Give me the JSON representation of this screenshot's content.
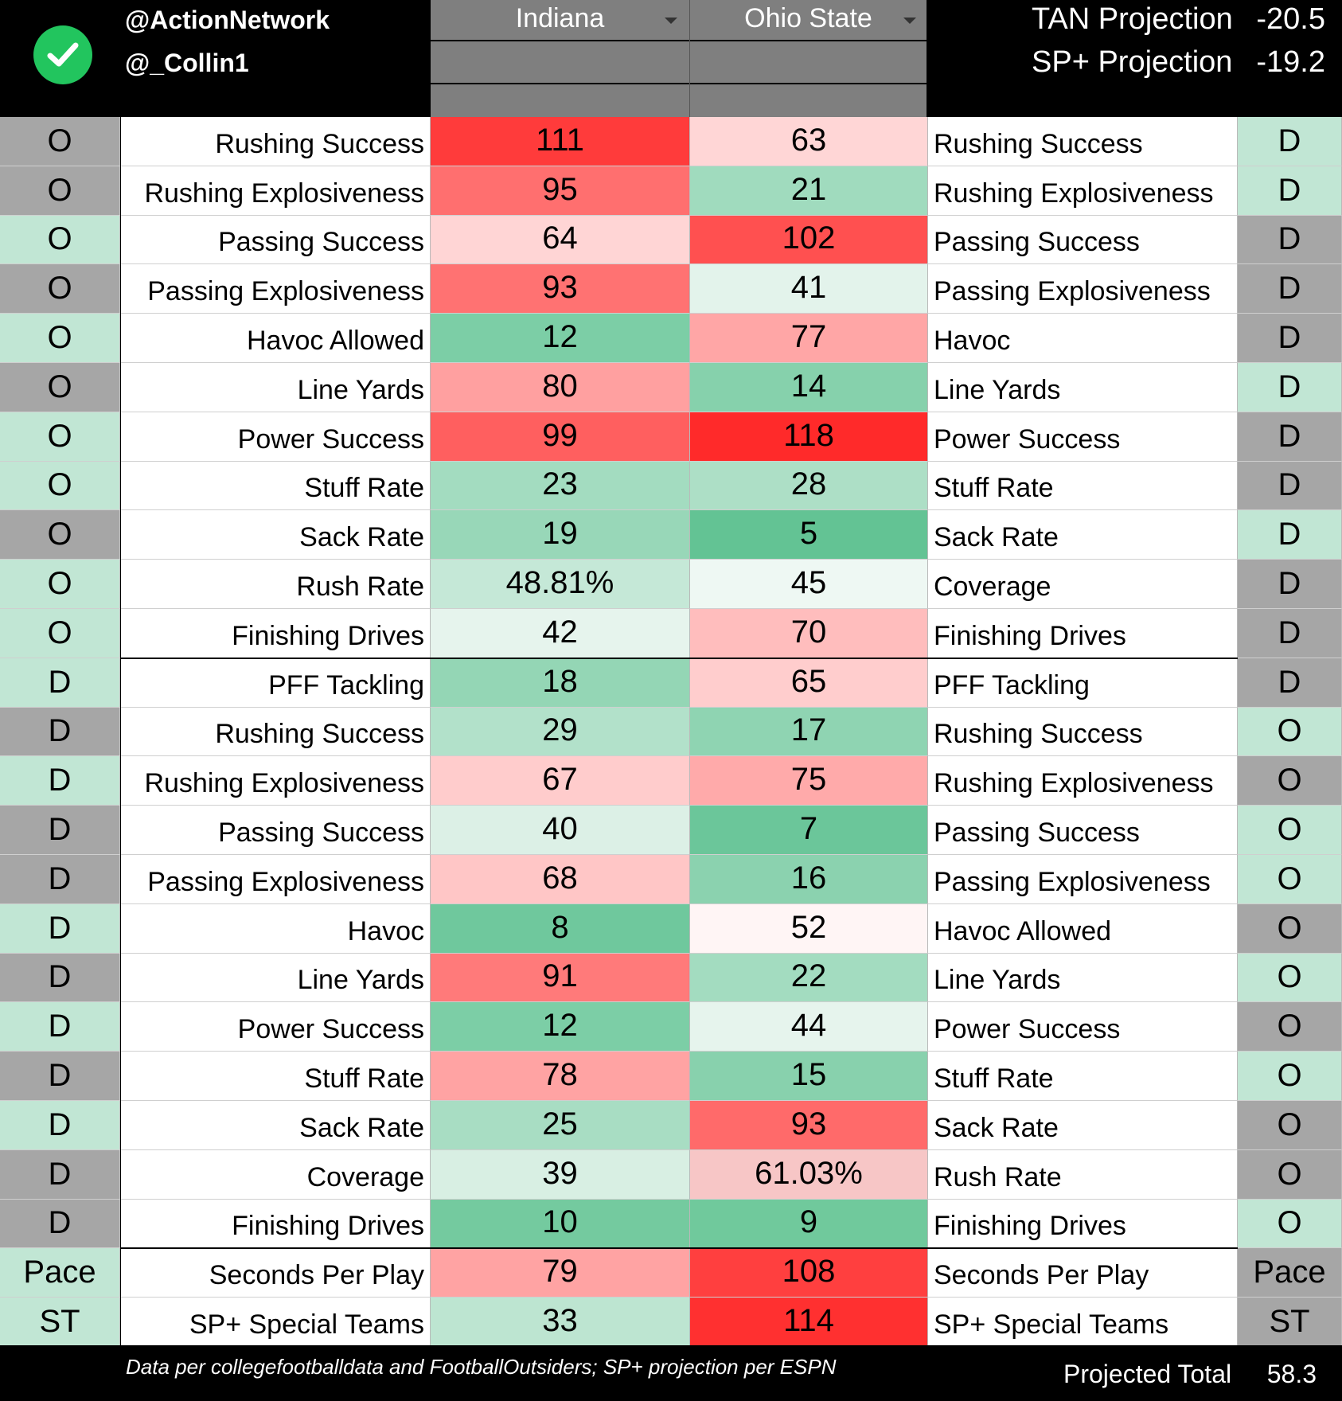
{
  "header": {
    "handle1": "@ActionNetwork",
    "handle2": "@_Collin1",
    "team_left": "Indiana",
    "team_right": "Ohio State",
    "projections": [
      {
        "label": "TAN Projection",
        "value": "-20.5"
      },
      {
        "label": "SP+ Projection",
        "value": "-19.2"
      }
    ]
  },
  "colors": {
    "side_gray": "#a6a6a6",
    "side_green": "#c1e6d4",
    "check_green": "#22c55e"
  },
  "rows": [
    {
      "left_side": "O",
      "left_label": "Rushing Success",
      "left_value": "111",
      "right_value": "63",
      "right_label": "Rushing Success",
      "right_side": "D",
      "ls_color": "#a6a6a6",
      "lv_color": "#ff3b3b",
      "rv_color": "#ffd6d6",
      "rs_color": "#c1e6d4"
    },
    {
      "left_side": "O",
      "left_label": "Rushing Explosiveness",
      "left_value": "95",
      "right_value": "21",
      "right_label": "Rushing Explosiveness",
      "right_side": "D",
      "ls_color": "#a6a6a6",
      "lv_color": "#ff6f6f",
      "rv_color": "#a0dbbe",
      "rs_color": "#c1e6d4"
    },
    {
      "left_side": "O",
      "left_label": "Passing Success",
      "left_value": "64",
      "right_value": "102",
      "right_label": "Passing Success",
      "right_side": "D",
      "ls_color": "#c1e6d4",
      "lv_color": "#ffd5d5",
      "rv_color": "#ff5050",
      "rs_color": "#a6a6a6"
    },
    {
      "left_side": "O",
      "left_label": "Passing Explosiveness",
      "left_value": "93",
      "right_value": "41",
      "right_label": "Passing Explosiveness",
      "right_side": "D",
      "ls_color": "#a6a6a6",
      "lv_color": "#ff7272",
      "rv_color": "#e3f3eb",
      "rs_color": "#a6a6a6"
    },
    {
      "left_side": "O",
      "left_label": "Havoc Allowed",
      "left_value": "12",
      "right_value": "77",
      "right_label": "Havoc",
      "right_side": "D",
      "ls_color": "#c1e6d4",
      "lv_color": "#7ccea6",
      "rv_color": "#ffa6a6",
      "rs_color": "#a6a6a6"
    },
    {
      "left_side": "O",
      "left_label": "Line Yards",
      "left_value": "80",
      "right_value": "14",
      "right_label": "Line Yards",
      "right_side": "D",
      "ls_color": "#a6a6a6",
      "lv_color": "#ffa0a0",
      "rv_color": "#86d1ac",
      "rs_color": "#c1e6d4"
    },
    {
      "left_side": "O",
      "left_label": "Power Success",
      "left_value": "99",
      "right_value": "118",
      "right_label": "Power Success",
      "right_side": "D",
      "ls_color": "#c1e6d4",
      "lv_color": "#ff5f5f",
      "rv_color": "#ff2a2a",
      "rs_color": "#a6a6a6"
    },
    {
      "left_side": "O",
      "left_label": "Stuff Rate",
      "left_value": "23",
      "right_value": "28",
      "right_label": "Stuff Rate",
      "right_side": "D",
      "ls_color": "#c1e6d4",
      "lv_color": "#a3dcc0",
      "rv_color": "#addfc6",
      "rs_color": "#a6a6a6"
    },
    {
      "left_side": "O",
      "left_label": "Sack Rate",
      "left_value": "19",
      "right_value": "5",
      "right_label": "Sack Rate",
      "right_side": "D",
      "ls_color": "#a6a6a6",
      "lv_color": "#98d7b8",
      "rv_color": "#63c394",
      "rs_color": "#c1e6d4"
    },
    {
      "left_side": "O",
      "left_label": "Rush Rate",
      "left_value": "48.81%",
      "right_value": "45",
      "right_label": "Coverage",
      "right_side": "D",
      "ls_color": "#c1e6d4",
      "lv_color": "#c5e8d7",
      "rv_color": "#eef8f3",
      "rs_color": "#a6a6a6"
    },
    {
      "left_side": "O",
      "left_label": "Finishing Drives",
      "left_value": "42",
      "right_value": "70",
      "right_label": "Finishing Drives",
      "right_side": "D",
      "ls_color": "#c1e6d4",
      "lv_color": "#e6f4ed",
      "rv_color": "#ffbdbd",
      "rs_color": "#a6a6a6"
    },
    {
      "left_side": "D",
      "left_label": "PFF Tackling",
      "left_value": "18",
      "right_value": "65",
      "right_label": "PFF Tackling",
      "right_side": "D",
      "ls_color": "#c1e6d4",
      "lv_color": "#94d6b5",
      "rv_color": "#ffcdcd",
      "rs_color": "#a6a6a6"
    },
    {
      "left_side": "D",
      "left_label": "Rushing Success",
      "left_value": "29",
      "right_value": "17",
      "right_label": "Rushing Success",
      "right_side": "O",
      "ls_color": "#a6a6a6",
      "lv_color": "#b2e1ca",
      "rv_color": "#8fd4b2",
      "rs_color": "#c1e6d4"
    },
    {
      "left_side": "D",
      "left_label": "Rushing Explosiveness",
      "left_value": "67",
      "right_value": "75",
      "right_label": "Rushing Explosiveness",
      "right_side": "O",
      "ls_color": "#c1e6d4",
      "lv_color": "#ffcccc",
      "rv_color": "#ffaaaa",
      "rs_color": "#a6a6a6"
    },
    {
      "left_side": "D",
      "left_label": "Passing Success",
      "left_value": "40",
      "right_value": "7",
      "right_label": "Passing Success",
      "right_side": "O",
      "ls_color": "#a6a6a6",
      "lv_color": "#dcf0e6",
      "rv_color": "#6bc69a",
      "rs_color": "#c1e6d4"
    },
    {
      "left_side": "D",
      "left_label": "Passing Explosiveness",
      "left_value": "68",
      "right_value": "16",
      "right_label": "Passing Explosiveness",
      "right_side": "O",
      "ls_color": "#a6a6a6",
      "lv_color": "#ffc6c6",
      "rv_color": "#8bd2af",
      "rs_color": "#c1e6d4"
    },
    {
      "left_side": "D",
      "left_label": "Havoc",
      "left_value": "8",
      "right_value": "52",
      "right_label": "Havoc Allowed",
      "right_side": "O",
      "ls_color": "#c1e6d4",
      "lv_color": "#6fc89d",
      "rv_color": "#fff5f5",
      "rs_color": "#a6a6a6"
    },
    {
      "left_side": "D",
      "left_label": "Line Yards",
      "left_value": "91",
      "right_value": "22",
      "right_label": "Line Yards",
      "right_side": "O",
      "ls_color": "#a6a6a6",
      "lv_color": "#ff7a7a",
      "rv_color": "#a3dcc0",
      "rs_color": "#c1e6d4"
    },
    {
      "left_side": "D",
      "left_label": "Power Success",
      "left_value": "12",
      "right_value": "44",
      "right_label": "Power Success",
      "right_side": "O",
      "ls_color": "#c1e6d4",
      "lv_color": "#7ccea6",
      "rv_color": "#e6f4ed",
      "rs_color": "#a6a6a6"
    },
    {
      "left_side": "D",
      "left_label": "Stuff Rate",
      "left_value": "78",
      "right_value": "15",
      "right_label": "Stuff Rate",
      "right_side": "O",
      "ls_color": "#a6a6a6",
      "lv_color": "#ffa3a3",
      "rv_color": "#88d1ad",
      "rs_color": "#c1e6d4"
    },
    {
      "left_side": "D",
      "left_label": "Sack Rate",
      "left_value": "25",
      "right_value": "93",
      "right_label": "Sack Rate",
      "right_side": "O",
      "ls_color": "#c1e6d4",
      "lv_color": "#a8ddc3",
      "rv_color": "#ff6a6a",
      "rs_color": "#a6a6a6"
    },
    {
      "left_side": "D",
      "left_label": "Coverage",
      "left_value": "39",
      "right_value": "61.03%",
      "right_label": "Rush Rate",
      "right_side": "O",
      "ls_color": "#a6a6a6",
      "lv_color": "#d8efe3",
      "rv_color": "#f7c6c6",
      "rs_color": "#a6a6a6"
    },
    {
      "left_side": "D",
      "left_label": "Finishing Drives",
      "left_value": "10",
      "right_value": "9",
      "right_label": "Finishing Drives",
      "right_side": "O",
      "ls_color": "#a6a6a6",
      "lv_color": "#74ca9f",
      "rv_color": "#70c99c",
      "rs_color": "#c1e6d4"
    },
    {
      "left_side": "Pace",
      "left_label": "Seconds Per Play",
      "left_value": "79",
      "right_value": "108",
      "right_label": "Seconds Per Play",
      "right_side": "Pace",
      "ls_color": "#c1e6d4",
      "lv_color": "#ffa3a3",
      "rv_color": "#ff3f3f",
      "rs_color": "#a6a6a6"
    },
    {
      "left_side": "ST",
      "left_label": "SP+ Special Teams",
      "left_value": "33",
      "right_value": "114",
      "right_label": "SP+ Special Teams",
      "right_side": "ST",
      "ls_color": "#c1e6d4",
      "lv_color": "#bde5d1",
      "rv_color": "#ff3030",
      "rs_color": "#a6a6a6"
    }
  ],
  "footer": {
    "source": "Data per collegefootballdata and FootballOutsiders; SP+ projection per ESPN",
    "total_label": "Projected Total",
    "total_value": "58.3"
  }
}
